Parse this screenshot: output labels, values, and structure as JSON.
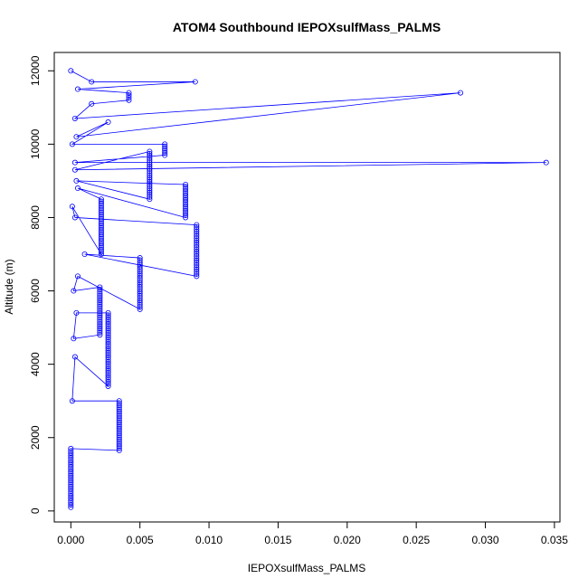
{
  "chart_data": {
    "type": "line",
    "title": "ATOM4 Southbound IEPOXsulfMass_PALMS",
    "xlabel": "IEPOXsulfMass_PALMS",
    "ylabel": "Altitude (m)",
    "xlim": [
      -0.0012,
      0.0354
    ],
    "ylim": [
      -300,
      12500
    ],
    "x_ticks": [
      0.0,
      0.005,
      0.01,
      0.015,
      0.02,
      0.025,
      0.03,
      0.035
    ],
    "x_tick_labels": [
      "0.000",
      "0.005",
      "0.010",
      "0.015",
      "0.020",
      "0.025",
      "0.030",
      "0.035"
    ],
    "y_ticks": [
      0,
      2000,
      4000,
      6000,
      8000,
      10000,
      12000
    ],
    "y_tick_labels": [
      "0",
      "2000",
      "4000",
      "6000",
      "8000",
      "10000",
      "12000"
    ],
    "grid": false,
    "marker": "open-circle",
    "series_color": "#0000ff",
    "series": [
      {
        "points": [
          [
            0.0,
            100
          ],
          [
            0.0,
            600
          ],
          [
            0.0,
            1200
          ],
          [
            0.0,
            1700
          ],
          [
            0.0035,
            1650
          ],
          [
            0.0035,
            3000
          ],
          [
            0.0001,
            3000
          ],
          [
            0.0003,
            4200
          ],
          [
            0.0027,
            3400
          ],
          [
            0.0027,
            5400
          ],
          [
            0.0004,
            5400
          ],
          [
            0.0002,
            4700
          ],
          [
            0.0021,
            4800
          ],
          [
            0.0021,
            6100
          ],
          [
            0.0002,
            6000
          ],
          [
            0.0005,
            6400
          ],
          [
            0.005,
            5500
          ],
          [
            0.005,
            6900
          ],
          [
            0.001,
            7000
          ],
          [
            0.0091,
            6400
          ],
          [
            0.0091,
            7800
          ],
          [
            0.0003,
            8000
          ],
          [
            0.0001,
            8300
          ],
          [
            0.0022,
            7000
          ],
          [
            0.0022,
            8500
          ],
          [
            0.0005,
            8800
          ],
          [
            0.0083,
            8000
          ],
          [
            0.0083,
            8900
          ],
          [
            0.0004,
            9000
          ],
          [
            0.0057,
            8500
          ],
          [
            0.0057,
            9800
          ],
          [
            0.0003,
            9300
          ],
          [
            0.0344,
            9500
          ],
          [
            0.0003,
            9500
          ],
          [
            0.0068,
            9700
          ],
          [
            0.0068,
            10000
          ],
          [
            0.0001,
            10000
          ],
          [
            0.0027,
            10600
          ],
          [
            0.0004,
            10200
          ],
          [
            0.0282,
            11400
          ],
          [
            0.0003,
            10700
          ],
          [
            0.0015,
            11100
          ],
          [
            0.0042,
            11200
          ],
          [
            0.0042,
            11400
          ],
          [
            0.0005,
            11500
          ],
          [
            0.009,
            11700
          ],
          [
            0.0015,
            11700
          ],
          [
            0.0,
            12000
          ]
        ]
      }
    ]
  }
}
